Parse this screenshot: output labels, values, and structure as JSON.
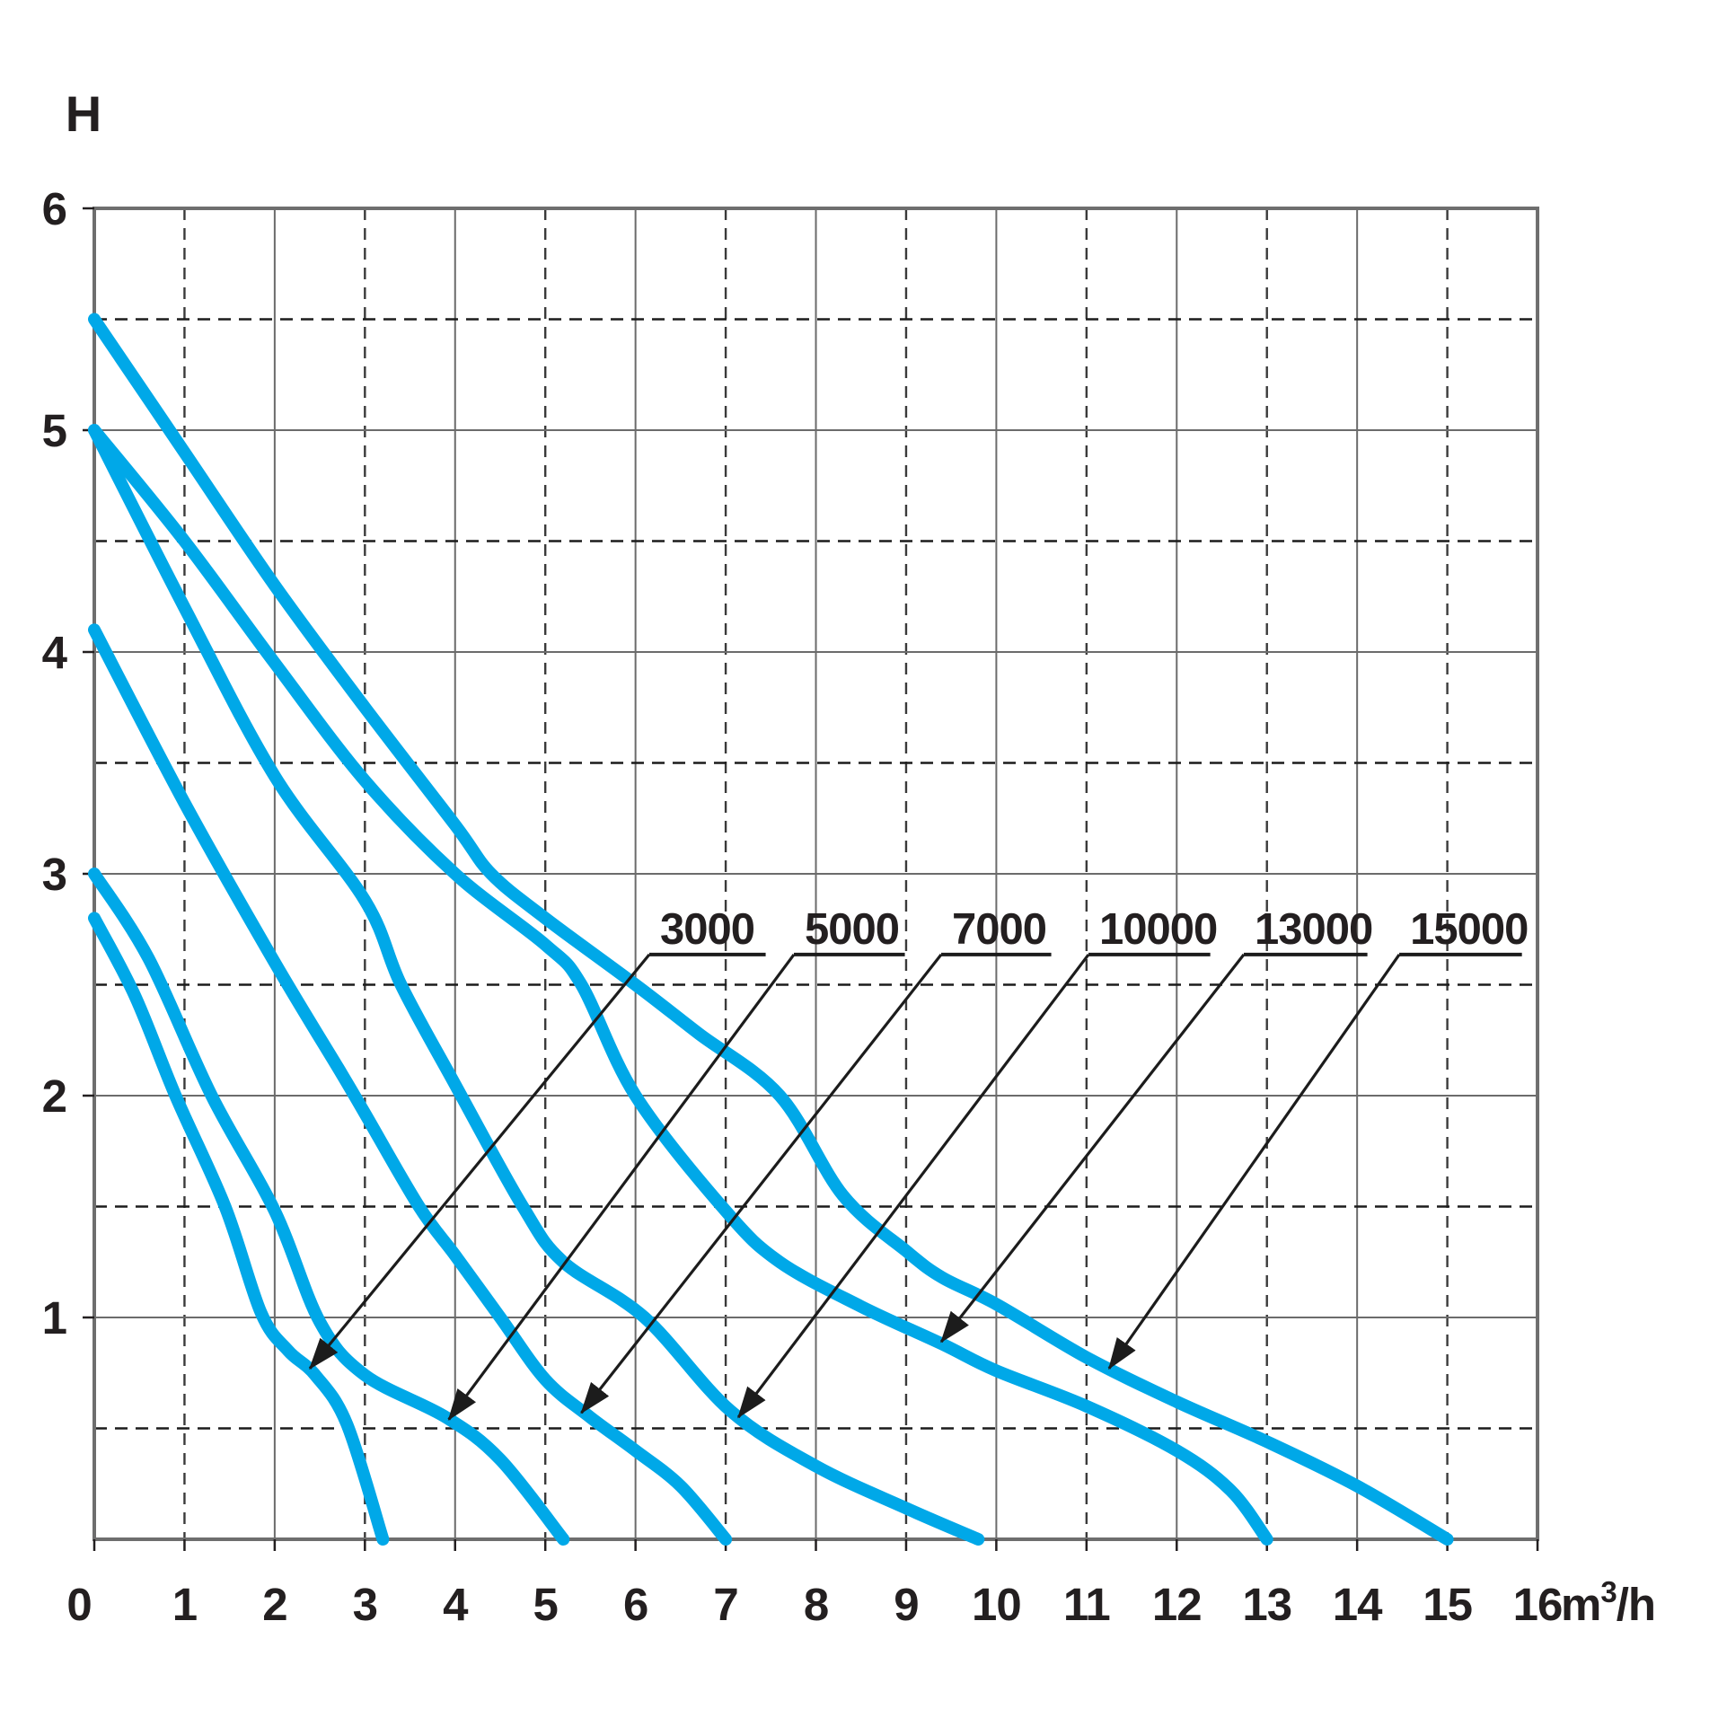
{
  "chart_data": {
    "type": "line",
    "title": "",
    "ylabel": "H",
    "x_unit": {
      "base": "m",
      "sup": "3",
      "rest": "/h"
    },
    "xlim": [
      0,
      16
    ],
    "ylim": [
      0,
      6
    ],
    "x_ticks": [
      0,
      1,
      2,
      3,
      4,
      5,
      6,
      7,
      8,
      9,
      10,
      11,
      12,
      13,
      14,
      15,
      16
    ],
    "y_ticks": [
      1,
      2,
      3,
      4,
      5,
      6
    ],
    "grid": {
      "x_minor_dashed": "odd integers",
      "y_minor_dashed": "half steps"
    },
    "legend_position": "inline-labels-with-arrows",
    "series": [
      {
        "name": "3000",
        "points": [
          [
            0,
            2.8
          ],
          [
            0.45,
            2.45
          ],
          [
            0.9,
            2.0
          ],
          [
            1.45,
            1.5
          ],
          [
            1.85,
            1.02
          ],
          [
            2.15,
            0.85
          ],
          [
            2.45,
            0.74
          ],
          [
            2.8,
            0.52
          ],
          [
            3.2,
            0
          ]
        ]
      },
      {
        "name": "5000",
        "points": [
          [
            0,
            3.0
          ],
          [
            0.6,
            2.62
          ],
          [
            1.3,
            2.0
          ],
          [
            2.0,
            1.48
          ],
          [
            2.5,
            0.98
          ],
          [
            3.0,
            0.74
          ],
          [
            3.9,
            0.55
          ],
          [
            4.5,
            0.36
          ],
          [
            5.2,
            0
          ]
        ]
      },
      {
        "name": "7000",
        "points": [
          [
            0,
            4.1
          ],
          [
            1,
            3.32
          ],
          [
            2,
            2.6
          ],
          [
            2.74,
            2.1
          ],
          [
            3,
            1.92
          ],
          [
            3.6,
            1.5
          ],
          [
            4,
            1.28
          ],
          [
            4.5,
            1.0
          ],
          [
            5,
            0.72
          ],
          [
            5.5,
            0.55
          ],
          [
            6,
            0.4
          ],
          [
            6.5,
            0.24
          ],
          [
            7,
            0
          ]
        ]
      },
      {
        "name": "10000",
        "points": [
          [
            0,
            5.0
          ],
          [
            1,
            4.2
          ],
          [
            2,
            3.44
          ],
          [
            3,
            2.88
          ],
          [
            3.4,
            2.5
          ],
          [
            4,
            2.05
          ],
          [
            4.75,
            1.5
          ],
          [
            5.2,
            1.25
          ],
          [
            6.1,
            1.0
          ],
          [
            7.05,
            0.58
          ],
          [
            8,
            0.33
          ],
          [
            9,
            0.14
          ],
          [
            9.8,
            0
          ]
        ]
      },
      {
        "name": "13000",
        "points": [
          [
            0,
            5.0
          ],
          [
            1,
            4.5
          ],
          [
            2,
            3.95
          ],
          [
            3,
            3.42
          ],
          [
            4,
            3.0
          ],
          [
            5,
            2.68
          ],
          [
            5.4,
            2.5
          ],
          [
            6,
            2.0
          ],
          [
            7,
            1.48
          ],
          [
            7.6,
            1.25
          ],
          [
            8.5,
            1.05
          ],
          [
            9.4,
            0.88
          ],
          [
            10,
            0.76
          ],
          [
            11,
            0.6
          ],
          [
            12,
            0.4
          ],
          [
            12.6,
            0.22
          ],
          [
            13,
            0
          ]
        ]
      },
      {
        "name": "15000",
        "points": [
          [
            0,
            5.5
          ],
          [
            1,
            4.9
          ],
          [
            2,
            4.3
          ],
          [
            3,
            3.75
          ],
          [
            4,
            3.22
          ],
          [
            4.4,
            3.0
          ],
          [
            5,
            2.8
          ],
          [
            6,
            2.5
          ],
          [
            6.7,
            2.28
          ],
          [
            7.6,
            2.0
          ],
          [
            8.3,
            1.55
          ],
          [
            9,
            1.3
          ],
          [
            9.4,
            1.18
          ],
          [
            10,
            1.06
          ],
          [
            11,
            0.82
          ],
          [
            12,
            0.62
          ],
          [
            13,
            0.44
          ],
          [
            14,
            0.24
          ],
          [
            15,
            0
          ]
        ]
      }
    ],
    "annotations": [
      {
        "label": "3000",
        "tail": [
          6.153,
          2.636
        ],
        "tip": [
          2.39,
          0.77
        ],
        "underline_units": 1.29
      },
      {
        "label": "5000",
        "tail": [
          7.756,
          2.636
        ],
        "tip": [
          3.93,
          0.54
        ],
        "underline_units": 1.23
      },
      {
        "label": "7000",
        "tail": [
          9.389,
          2.636
        ],
        "tip": [
          5.4,
          0.57
        ],
        "underline_units": 1.22
      },
      {
        "label": "10000",
        "tail": [
          11.022,
          2.636
        ],
        "tip": [
          7.14,
          0.55
        ],
        "underline_units": 1.35
      },
      {
        "label": "13000",
        "tail": [
          12.744,
          2.636
        ],
        "tip": [
          9.39,
          0.89
        ],
        "underline_units": 1.37
      },
      {
        "label": "15000",
        "tail": [
          14.467,
          2.636
        ],
        "tip": [
          11.25,
          0.77
        ],
        "underline_units": 1.36
      }
    ],
    "colors": {
      "curve": "#00a8e8",
      "text": "#231f20",
      "grid_solid": "#6b6b6b",
      "grid_dashed_h": "#1c1c1c",
      "grid_dashed_v": "#3a3a3a",
      "frame": "#6e6e6e",
      "annotation_line": "#1c1c1c"
    }
  }
}
